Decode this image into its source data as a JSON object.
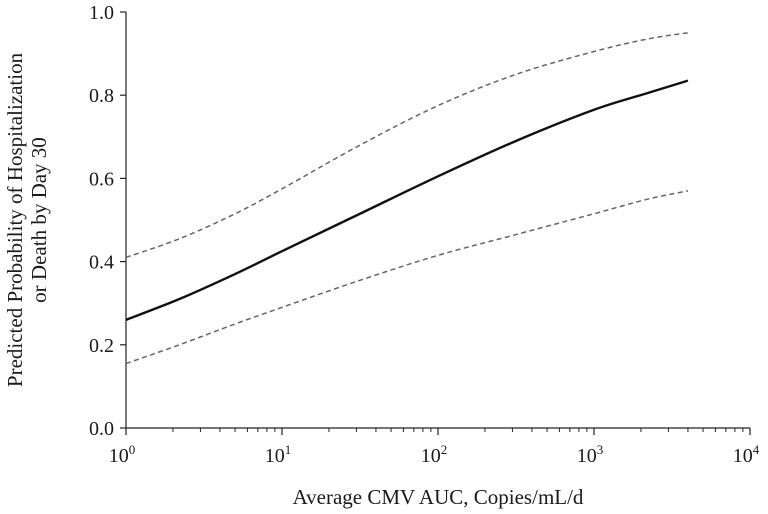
{
  "chart_data": {
    "type": "line",
    "xlabel": "Average CMV AUC, Copies/mL/d",
    "ylabel_lines": [
      "Predicted Probability of Hospitalization",
      "or Death by Day 30"
    ],
    "x_scale": "log10",
    "xlim": [
      1,
      10000
    ],
    "ylim": [
      0,
      1
    ],
    "x_ticks": [
      {
        "value": 1,
        "base": "10",
        "exp": "0"
      },
      {
        "value": 10,
        "base": "10",
        "exp": "1"
      },
      {
        "value": 100,
        "base": "10",
        "exp": "2"
      },
      {
        "value": 1000,
        "base": "10",
        "exp": "3"
      },
      {
        "value": 10000,
        "base": "10",
        "exp": "4"
      }
    ],
    "y_ticks": [
      "0.0",
      "0.2",
      "0.4",
      "0.6",
      "0.8",
      "1.0"
    ],
    "grid": false,
    "series": [
      {
        "style": "solid",
        "color": "#111111",
        "points": [
          [
            1,
            0.26
          ],
          [
            2.2,
            0.31
          ],
          [
            5,
            0.37
          ],
          [
            10,
            0.425
          ],
          [
            31.6,
            0.515
          ],
          [
            100,
            0.605
          ],
          [
            316,
            0.69
          ],
          [
            1000,
            0.765
          ],
          [
            2200,
            0.805
          ],
          [
            4000,
            0.835
          ]
        ]
      },
      {
        "style": "dashed",
        "color": "#666666",
        "points": [
          [
            1,
            0.41
          ],
          [
            2.2,
            0.455
          ],
          [
            5,
            0.515
          ],
          [
            10,
            0.575
          ],
          [
            31.6,
            0.68
          ],
          [
            100,
            0.775
          ],
          [
            316,
            0.85
          ],
          [
            1000,
            0.905
          ],
          [
            2200,
            0.935
          ],
          [
            4000,
            0.95
          ]
        ]
      },
      {
        "style": "dashed",
        "color": "#666666",
        "points": [
          [
            1,
            0.155
          ],
          [
            2.2,
            0.2
          ],
          [
            5,
            0.25
          ],
          [
            10,
            0.29
          ],
          [
            31.6,
            0.355
          ],
          [
            100,
            0.415
          ],
          [
            316,
            0.465
          ],
          [
            1000,
            0.515
          ],
          [
            2200,
            0.55
          ],
          [
            4000,
            0.57
          ]
        ]
      }
    ]
  }
}
